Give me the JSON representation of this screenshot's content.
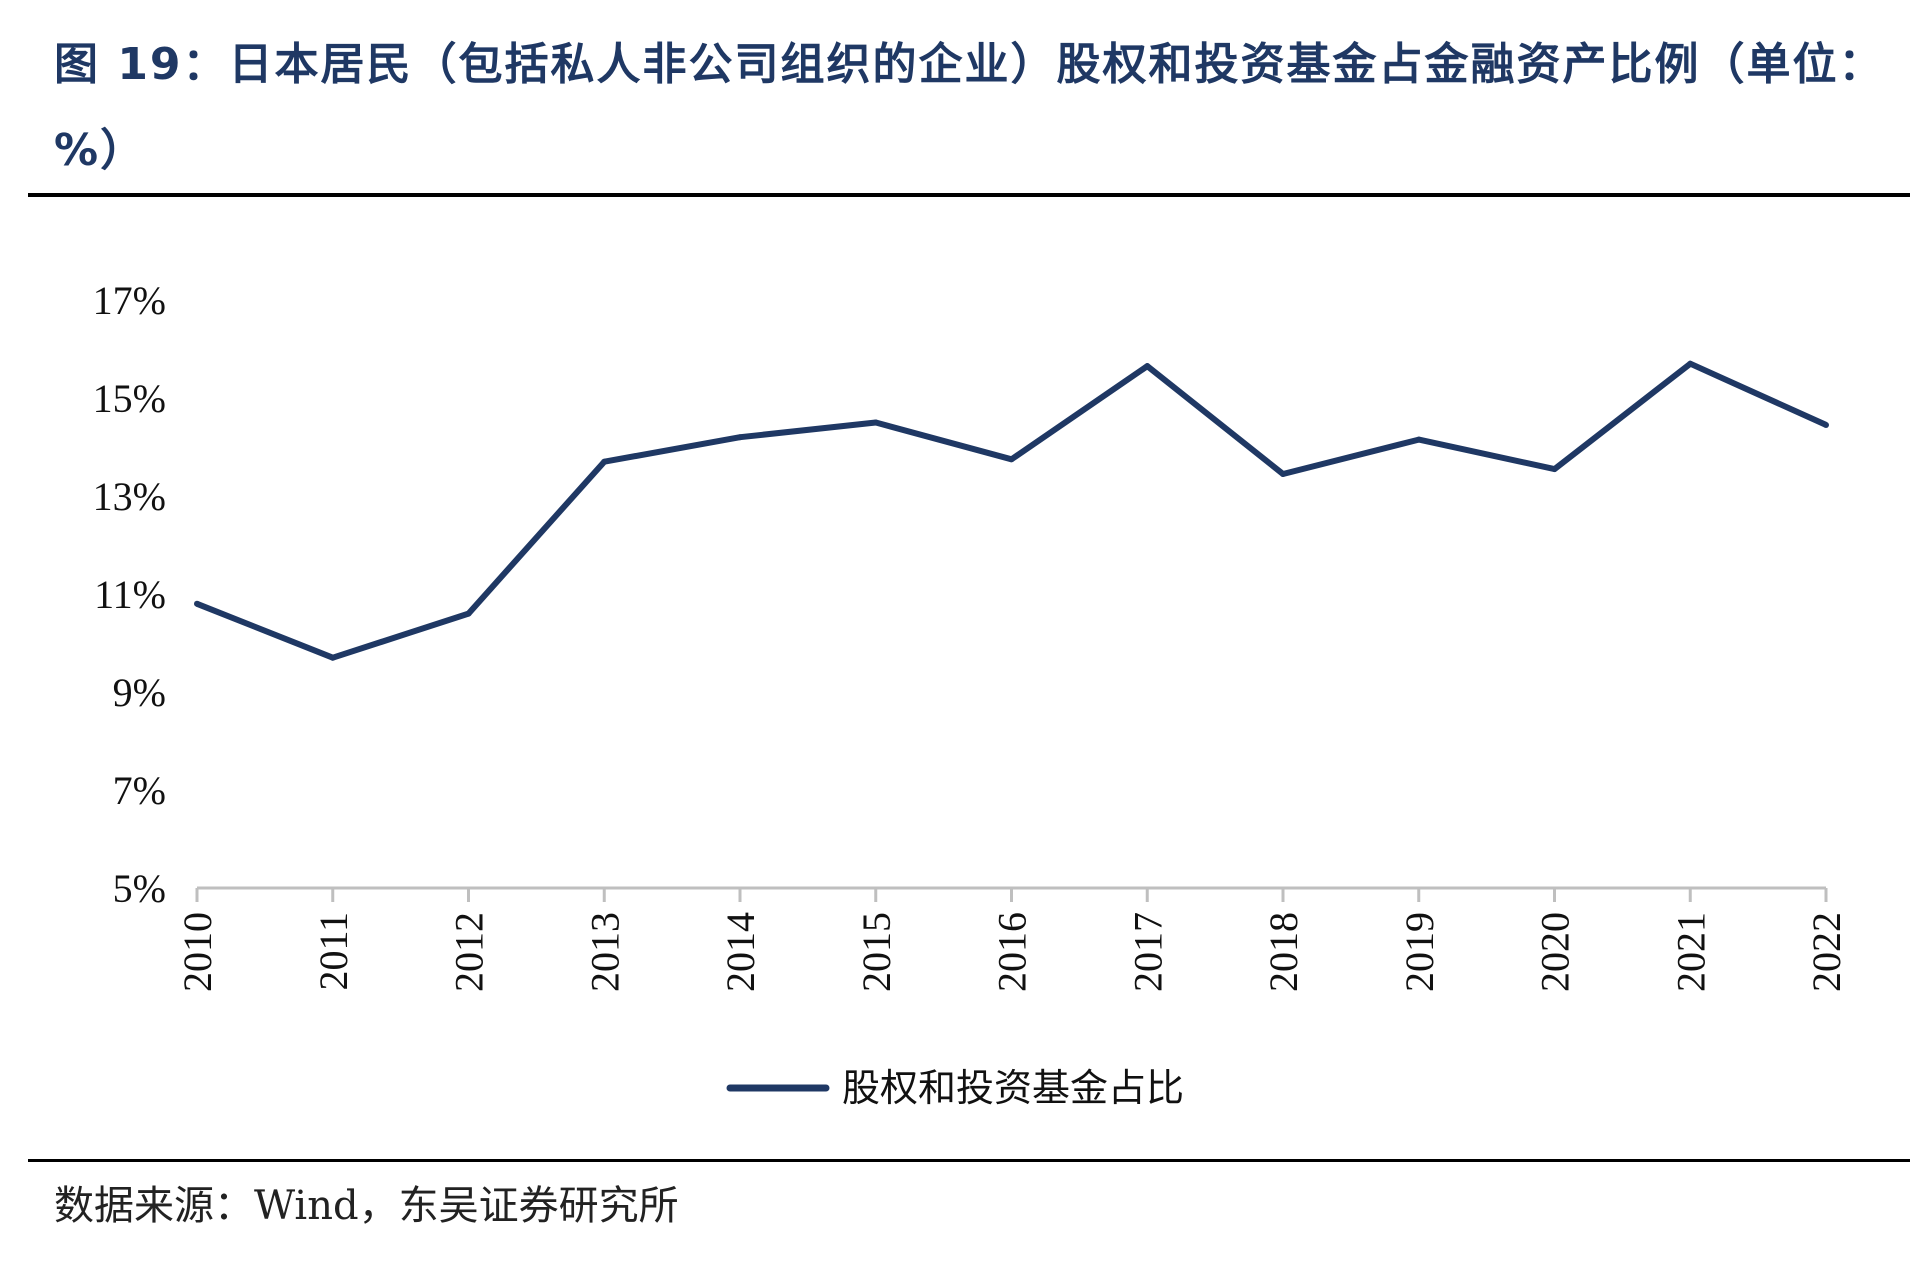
{
  "title": "图 19：日本居民（包括私人非公司组织的企业）股权和投资基金占金融资产比例（单位：%）",
  "source": "数据来源：Wind，东吴证券研究所",
  "colors": {
    "line": "#1f3864",
    "axis": "#bfbfbf",
    "title": "#1f3864"
  },
  "chart_data": {
    "type": "line",
    "categories": [
      "2010",
      "2011",
      "2012",
      "2013",
      "2014",
      "2015",
      "2016",
      "2017",
      "2018",
      "2019",
      "2020",
      "2021",
      "2022"
    ],
    "series": [
      {
        "name": "股权和投资基金占比",
        "values": [
          10.8,
          9.7,
          10.6,
          13.7,
          14.2,
          14.5,
          13.75,
          15.65,
          13.45,
          14.15,
          13.55,
          15.7,
          14.45
        ]
      }
    ],
    "y_ticks": [
      "5%",
      "7%",
      "9%",
      "11%",
      "13%",
      "15%",
      "17%"
    ],
    "ylim": [
      5,
      17
    ],
    "legend_position": "bottom-center",
    "grid": false
  }
}
